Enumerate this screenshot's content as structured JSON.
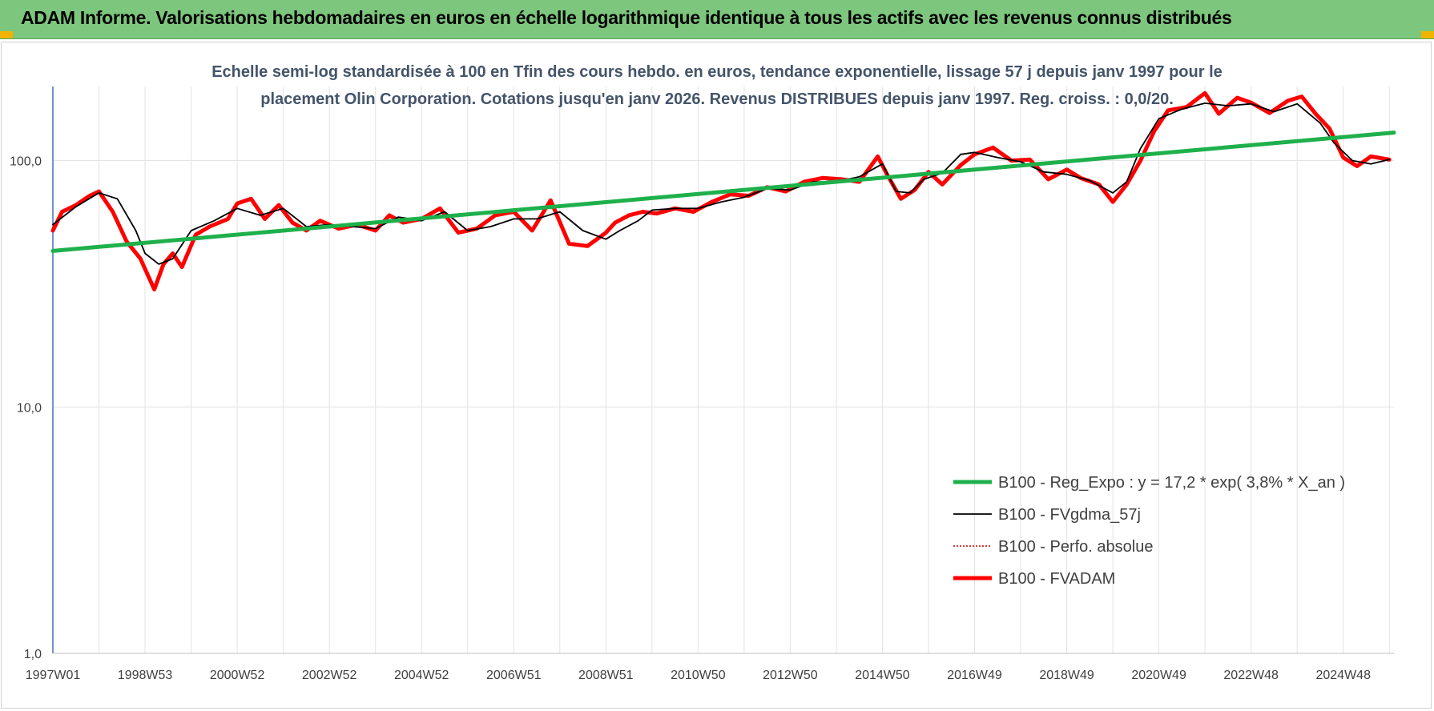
{
  "banner": {
    "title": "ADAM Informe. Valorisations hebdomadaires en euros en échelle logarithmique identique à tous les actifs avec les revenus connus distribués",
    "background": "#7dc67d",
    "corner_color": "#f0b400"
  },
  "chart_data": {
    "type": "line",
    "subtitle_lines": [
      "Echelle semi-log standardisée à 100 en Tfin des cours hebdo. en euros, tendance exponentielle, lissage 57 j depuis janv 1997 pour le",
      "placement Olin Corporation. Cotations jusqu'en janv 2026. Revenus DISTRIBUES depuis janv 1997. Reg.  croiss. : 0,0/20."
    ],
    "y_scale": "log",
    "ylim": [
      1,
      200
    ],
    "y_ticks": [
      {
        "value": 1,
        "label": "1,0"
      },
      {
        "value": 10,
        "label": "10,0"
      },
      {
        "value": 100,
        "label": "100,0"
      }
    ],
    "xlim": [
      1997.0,
      2026.1
    ],
    "x_ticks": [
      {
        "value": 1997.0,
        "label": "1997W01"
      },
      {
        "value": 1999.0,
        "label": "1998W53"
      },
      {
        "value": 2001.0,
        "label": "2000W52"
      },
      {
        "value": 2003.0,
        "label": "2002W52"
      },
      {
        "value": 2005.0,
        "label": "2004W52"
      },
      {
        "value": 2007.0,
        "label": "2006W51"
      },
      {
        "value": 2009.0,
        "label": "2008W51"
      },
      {
        "value": 2011.0,
        "label": "2010W50"
      },
      {
        "value": 2013.0,
        "label": "2012W50"
      },
      {
        "value": 2015.0,
        "label": "2014W50"
      },
      {
        "value": 2017.0,
        "label": "2016W49"
      },
      {
        "value": 2019.0,
        "label": "2018W49"
      },
      {
        "value": 2021.0,
        "label": "2020W49"
      },
      {
        "value": 2023.0,
        "label": "2022W48"
      },
      {
        "value": 2025.0,
        "label": "2024W48"
      }
    ],
    "grid": "vertical",
    "legend_position": "bottom-right",
    "series": [
      {
        "name": "B100 - Reg_Expo : y = 17,2 * exp( 3,8% *  X_an )",
        "color": "#1eb04b",
        "style": "thick",
        "x": [
          1997.0,
          2026.1
        ],
        "y": [
          43,
          130
        ]
      },
      {
        "name": "B100 - FVgdma_57j",
        "color": "#000000",
        "style": "thin",
        "x": [
          1997.0,
          1997.5,
          1998.0,
          1998.4,
          1998.8,
          1999.0,
          1999.3,
          1999.6,
          2000.0,
          2000.5,
          2001.0,
          2001.5,
          2002.0,
          2002.5,
          2003.0,
          2003.5,
          2004.0,
          2004.5,
          2005.0,
          2005.5,
          2006.0,
          2006.5,
          2007.0,
          2007.5,
          2008.0,
          2008.5,
          2009.0,
          2009.3,
          2009.7,
          2010.0,
          2010.5,
          2011.0,
          2011.5,
          2012.0,
          2012.5,
          2013.0,
          2013.5,
          2014.0,
          2014.5,
          2015.0,
          2015.3,
          2015.6,
          2015.9,
          2016.3,
          2016.7,
          2017.0,
          2017.5,
          2018.0,
          2018.5,
          2019.0,
          2019.5,
          2020.0,
          2020.3,
          2020.6,
          2021.0,
          2021.5,
          2022.0,
          2022.5,
          2023.0,
          2023.5,
          2024.0,
          2024.5,
          2024.8,
          2025.2,
          2025.6,
          2026.0
        ],
        "y": [
          55,
          65,
          74,
          70,
          52,
          42,
          38,
          40,
          52,
          57,
          64,
          60,
          64,
          54,
          55,
          54,
          53,
          59,
          57,
          62,
          52,
          54,
          58,
          58,
          62,
          52,
          48,
          52,
          57,
          63,
          64,
          64,
          68,
          71,
          77,
          76,
          82,
          82,
          86,
          97,
          75,
          74,
          84,
          89,
          106,
          108,
          103,
          99,
          90,
          88,
          83,
          74,
          82,
          112,
          148,
          162,
          171,
          167,
          170,
          158,
          170,
          142,
          118,
          100,
          97,
          101
        ]
      },
      {
        "name": "B100 - Perfo. absolue",
        "color": "#c00000",
        "style": "dotted",
        "x": [],
        "y": []
      },
      {
        "name": "B100 - FVADAM",
        "color": "#ff0000",
        "style": "thick",
        "x": [
          1997.0,
          1997.2,
          1997.5,
          1997.8,
          1998.0,
          1998.3,
          1998.6,
          1998.9,
          1999.2,
          1999.4,
          1999.6,
          1999.8,
          2000.1,
          2000.4,
          2000.8,
          2001.0,
          2001.3,
          2001.6,
          2001.9,
          2002.2,
          2002.5,
          2002.8,
          2003.2,
          2003.6,
          2004.0,
          2004.3,
          2004.6,
          2005.0,
          2005.4,
          2005.8,
          2006.2,
          2006.6,
          2007.0,
          2007.4,
          2007.8,
          2008.2,
          2008.6,
          2009.0,
          2009.2,
          2009.5,
          2009.8,
          2010.1,
          2010.5,
          2010.9,
          2011.3,
          2011.7,
          2012.1,
          2012.5,
          2012.9,
          2013.3,
          2013.7,
          2014.1,
          2014.5,
          2014.9,
          2015.1,
          2015.4,
          2015.7,
          2016.0,
          2016.3,
          2016.7,
          2017.0,
          2017.4,
          2017.8,
          2018.2,
          2018.6,
          2019.0,
          2019.3,
          2019.7,
          2020.0,
          2020.3,
          2020.6,
          2020.9,
          2021.2,
          2021.6,
          2022.0,
          2022.3,
          2022.7,
          2023.0,
          2023.4,
          2023.8,
          2024.1,
          2024.4,
          2024.7,
          2025.0,
          2025.3,
          2025.6,
          2026.0
        ],
        "y": [
          52,
          62,
          66,
          72,
          75,
          62,
          47,
          40,
          30,
          38,
          42,
          37,
          50,
          54,
          58,
          67,
          70,
          58,
          66,
          56,
          52,
          57,
          53,
          55,
          52,
          60,
          56,
          58,
          64,
          51,
          53,
          60,
          62,
          52,
          69,
          46,
          45,
          51,
          56,
          60,
          62,
          61,
          64,
          62,
          68,
          73,
          72,
          78,
          75,
          82,
          85,
          84,
          82,
          104,
          88,
          70,
          76,
          90,
          80,
          96,
          106,
          113,
          100,
          101,
          84,
          92,
          85,
          80,
          68,
          80,
          100,
          132,
          160,
          165,
          188,
          155,
          180,
          172,
          156,
          175,
          182,
          155,
          135,
          103,
          95,
          104,
          101
        ]
      }
    ]
  }
}
